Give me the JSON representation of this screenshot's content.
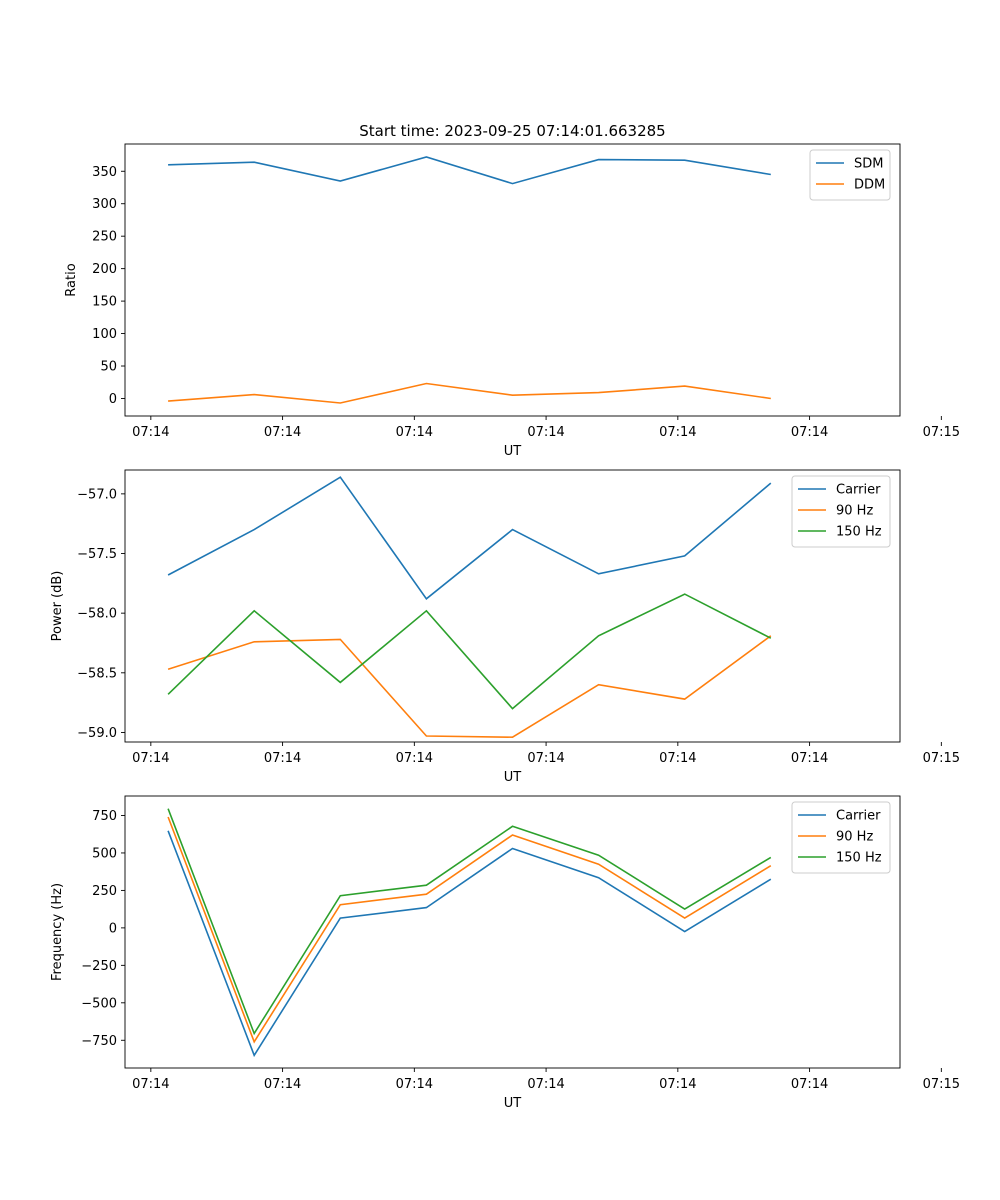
{
  "chart_data": [
    {
      "type": "line",
      "title": "Start time: 2023-09-25 07:14:01.663285",
      "xlabel": "UT",
      "ylabel": "Ratio",
      "x": [
        0,
        1,
        2,
        3,
        4,
        5,
        6,
        7
      ],
      "xlim": [
        -0.5,
        8.5
      ],
      "xtick_positions": [
        -0.2,
        1.33,
        2.86,
        4.39,
        5.92,
        7.45,
        8.98
      ],
      "xtick_labels": [
        "07:14",
        "07:14",
        "07:14",
        "07:14",
        "07:14",
        "07:14",
        "07:15"
      ],
      "ylim": [
        -27,
        392
      ],
      "yticks": [
        0,
        50,
        100,
        150,
        200,
        250,
        300,
        350
      ],
      "ytick_labels": [
        "0",
        "50",
        "100",
        "150",
        "200",
        "250",
        "300",
        "350"
      ],
      "legend_position": "top-right",
      "series": [
        {
          "name": "SDM",
          "color": "#1f77b4",
          "values": [
            360,
            364,
            335,
            372,
            331,
            368,
            367,
            345
          ]
        },
        {
          "name": "DDM",
          "color": "#ff7f0e",
          "values": [
            -4,
            6,
            -7,
            23,
            5,
            9,
            19,
            0
          ]
        }
      ]
    },
    {
      "type": "line",
      "title": "",
      "xlabel": "UT",
      "ylabel": "Power (dB)",
      "x": [
        0,
        1,
        2,
        3,
        4,
        5,
        6,
        7
      ],
      "xlim": [
        -0.5,
        8.5
      ],
      "xtick_positions": [
        -0.2,
        1.33,
        2.86,
        4.39,
        5.92,
        7.45,
        8.98
      ],
      "xtick_labels": [
        "07:14",
        "07:14",
        "07:14",
        "07:14",
        "07:14",
        "07:14",
        "07:15"
      ],
      "ylim": [
        -59.08,
        -56.8
      ],
      "yticks": [
        -59.0,
        -58.5,
        -58.0,
        -57.5,
        -57.0
      ],
      "ytick_labels": [
        "−59.0",
        "−58.5",
        "−58.0",
        "−57.5",
        "−57.0"
      ],
      "legend_position": "top-right",
      "series": [
        {
          "name": "Carrier",
          "color": "#1f77b4",
          "values": [
            -57.68,
            -57.3,
            -56.86,
            -57.88,
            -57.3,
            -57.67,
            -57.52,
            -56.91
          ]
        },
        {
          "name": "90 Hz",
          "color": "#ff7f0e",
          "values": [
            -58.47,
            -58.24,
            -58.22,
            -59.03,
            -59.04,
            -58.6,
            -58.72,
            -58.19
          ]
        },
        {
          "name": "150 Hz",
          "color": "#2ca02c",
          "values": [
            -58.68,
            -57.98,
            -58.58,
            -57.98,
            -58.8,
            -58.19,
            -57.84,
            -58.21
          ]
        }
      ]
    },
    {
      "type": "line",
      "title": "",
      "xlabel": "UT",
      "ylabel": "Frequency (Hz)",
      "x": [
        0,
        1,
        2,
        3,
        4,
        5,
        6,
        7
      ],
      "xlim": [
        -0.5,
        8.5
      ],
      "xtick_positions": [
        -0.2,
        1.33,
        2.86,
        4.39,
        5.92,
        7.45,
        8.98
      ],
      "xtick_labels": [
        "07:14",
        "07:14",
        "07:14",
        "07:14",
        "07:14",
        "07:14",
        "07:15"
      ],
      "ylim": [
        -935,
        880
      ],
      "yticks": [
        -750,
        -500,
        -250,
        0,
        250,
        500,
        750
      ],
      "ytick_labels": [
        "−750",
        "−500",
        "−250",
        "0",
        "250",
        "500",
        "750"
      ],
      "legend_position": "top-right",
      "series": [
        {
          "name": "Carrier",
          "color": "#1f77b4",
          "values": [
            648,
            -850,
            65,
            135,
            530,
            335,
            -25,
            325
          ]
        },
        {
          "name": "90 Hz",
          "color": "#ff7f0e",
          "values": [
            740,
            -760,
            155,
            225,
            620,
            425,
            65,
            415
          ]
        },
        {
          "name": "150 Hz",
          "color": "#2ca02c",
          "values": [
            795,
            -705,
            215,
            285,
            678,
            485,
            125,
            470
          ]
        }
      ]
    }
  ]
}
